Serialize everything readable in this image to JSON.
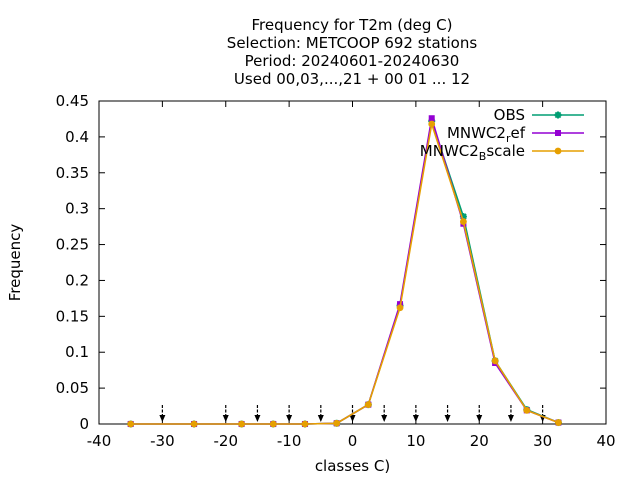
{
  "chart_data": {
    "type": "line",
    "title_lines": [
      "Frequency  for T2m (deg C)",
      "Selection: METCOOP    692 stations",
      "Period: 20240601-20240630",
      "Used 00,03,...,21 + 00 01 ... 12"
    ],
    "xlabel": "classes C)",
    "ylabel": "Frequency",
    "xlim": [
      -40,
      40
    ],
    "ylim": [
      0,
      0.45
    ],
    "xticks": [
      -40,
      -30,
      -20,
      -10,
      0,
      10,
      20,
      30,
      40
    ],
    "xtick_labels": [
      "-40",
      "-30",
      "-20",
      "-10",
      "0",
      "10",
      "20",
      "30",
      "40"
    ],
    "yticks": [
      0,
      0.05,
      0.1,
      0.15,
      0.2,
      0.25,
      0.3,
      0.35,
      0.4,
      0.45
    ],
    "ytick_labels": [
      "0",
      "0.05",
      "0.1",
      "0.15",
      "0.2",
      "0.25",
      "0.3",
      "0.35",
      "0.4",
      "0.45"
    ],
    "grid": false,
    "legend_position": "top-right",
    "class_boundary_arrows": [
      -30,
      -20,
      -15,
      -10,
      -5,
      0,
      5,
      10,
      15,
      20,
      25,
      30
    ],
    "x": [
      -35,
      -25,
      -17.5,
      -12.5,
      -7.5,
      -2.5,
      2.5,
      7.5,
      12.5,
      17.5,
      22.5,
      27.5,
      32.5
    ],
    "series": [
      {
        "name": "OBS",
        "legend_parts": [
          "OBS"
        ],
        "color": "#009e73",
        "marker": "star",
        "values": [
          0,
          0,
          0,
          0,
          0,
          0.001,
          0.027,
          0.165,
          0.422,
          0.289,
          0.088,
          0.02,
          0.002
        ]
      },
      {
        "name": "MNWC2_ref",
        "legend_parts": [
          "MNWC2",
          "r",
          "ef"
        ],
        "color": "#9400d3",
        "marker": "filled-square",
        "values": [
          0,
          0,
          0,
          0,
          0,
          0.001,
          0.027,
          0.167,
          0.426,
          0.279,
          0.085,
          0.019,
          0.002
        ]
      },
      {
        "name": "MNWC2_Bscale",
        "legend_parts": [
          "MNWC2",
          "B",
          "scale"
        ],
        "color": "#e69f00",
        "marker": "filled-circle",
        "values": [
          0,
          0,
          0,
          0,
          0,
          0.001,
          0.027,
          0.162,
          0.418,
          0.282,
          0.088,
          0.019,
          0.002
        ]
      }
    ]
  }
}
